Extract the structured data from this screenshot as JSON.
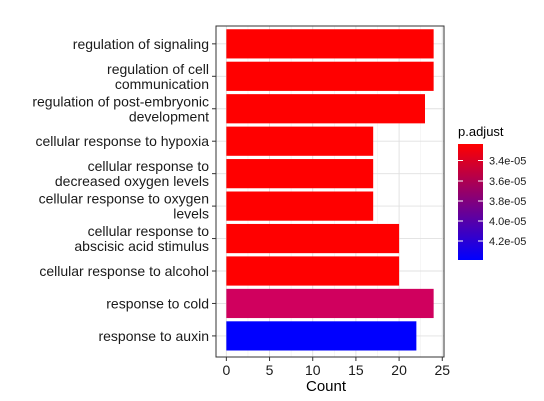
{
  "chart_data": {
    "type": "bar",
    "orientation": "horizontal",
    "categories": [
      "regulation of signaling",
      "regulation of cell\ncommunication",
      "regulation of post-embryonic\ndevelopment",
      "cellular response to hypoxia",
      "cellular response to\ndecreased oxygen levels",
      "cellular response to oxygen\nlevels",
      "cellular response to\nabscisic acid stimulus",
      "cellular response to alcohol",
      "response to cold",
      "response to auxin"
    ],
    "values": [
      24,
      24,
      23,
      17,
      17,
      17,
      20,
      20,
      24,
      22
    ],
    "colors": [
      "#FF0000",
      "#FF0000",
      "#FF0000",
      "#FF0000",
      "#FF0000",
      "#FF0000",
      "#FF0000",
      "#FF0000",
      "#D0005E",
      "#0000FF"
    ],
    "xlabel": "Count",
    "ylabel": "",
    "xlim": [
      -1.2,
      25.2
    ],
    "xticks": [
      0,
      5,
      10,
      15,
      20,
      25
    ],
    "grid": true,
    "legend": {
      "title": "p.adjust",
      "placement": "right",
      "type": "colorbar",
      "color_high": "#FF0000",
      "color_low": "#0000FF",
      "ticks": [
        "3.4e-05",
        "3.6e-05",
        "3.8e-05",
        "4.0e-05",
        "4.2e-05"
      ]
    }
  }
}
